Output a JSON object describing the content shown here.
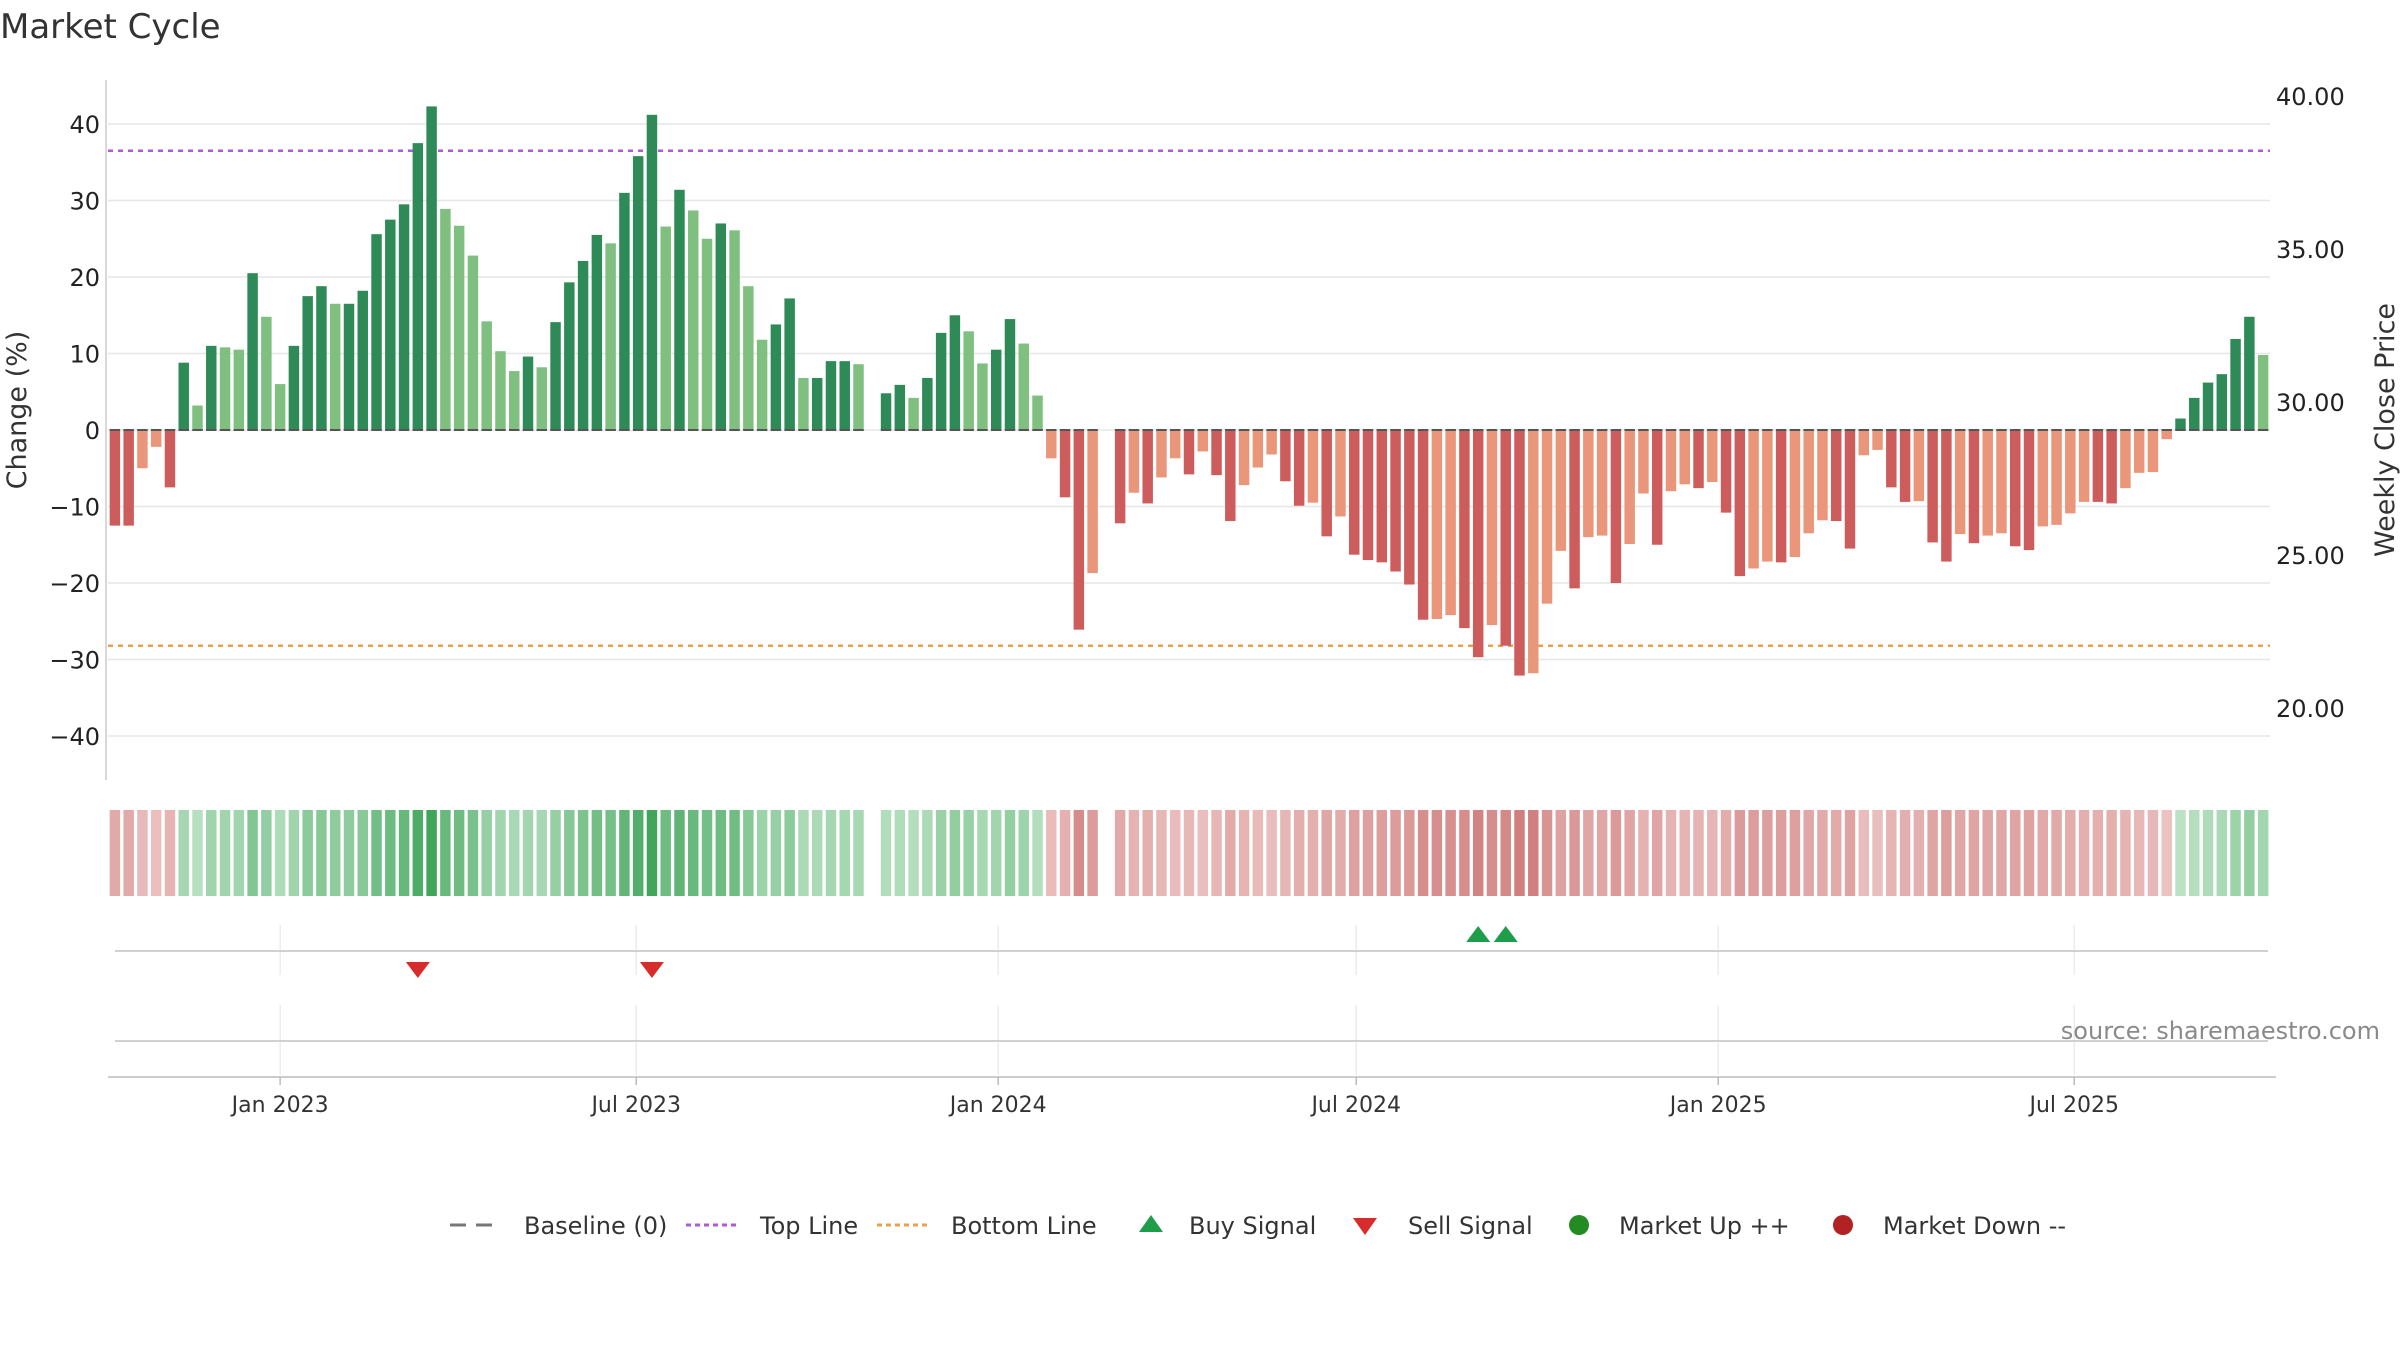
{
  "chart_data": {
    "type": "bar",
    "title": "Market Cycle",
    "ylabel": "Change (%)",
    "y2label": "Weekly Close Price",
    "ylim": [
      -46,
      46
    ],
    "y2lim": [
      17.96,
      41.06
    ],
    "yticks": [
      "40",
      "30",
      "20",
      "10",
      "0",
      "−10",
      "−20",
      "−30",
      "−40"
    ],
    "y2ticks": [
      "40.00",
      "35.00",
      "30.00",
      "25.00",
      "20.00"
    ],
    "top_line": 36.5,
    "bottom_line": -28.2,
    "baseline": 0,
    "start_date": "2022-10-09",
    "x_ticks": [
      {
        "date": "2023-01-01",
        "label": "Jan 2023"
      },
      {
        "date": "2023-07-01",
        "label": "Jul 2023"
      },
      {
        "date": "2024-01-01",
        "label": "Jan 2024"
      },
      {
        "date": "2024-07-01",
        "label": "Jul 2024"
      },
      {
        "date": "2025-01-01",
        "label": "Jan 2025"
      },
      {
        "date": "2025-07-01",
        "label": "Jul 2025"
      }
    ],
    "values": [
      -12.5,
      -12.5,
      -5,
      -2.2,
      -7.5,
      8.8,
      3.2,
      11,
      10.8,
      10.5,
      20.5,
      14.8,
      6,
      11,
      17.5,
      18.8,
      16.5,
      16.5,
      18.2,
      25.6,
      27.5,
      29.5,
      37.5,
      42.3,
      28.9,
      26.7,
      22.8,
      14.2,
      10.3,
      7.7,
      9.6,
      8.2,
      14.1,
      19.3,
      22.1,
      25.5,
      24.4,
      31,
      35.8,
      41.2,
      26.6,
      31.4,
      28.7,
      25,
      27,
      26.1,
      18.8,
      11.8,
      13.8,
      17.2,
      6.8,
      6.8,
      9,
      9,
      8.6,
      null,
      4.8,
      5.9,
      4.2,
      6.8,
      12.7,
      15,
      12.9,
      8.7,
      10.5,
      14.5,
      11.3,
      4.5,
      -3.7,
      -8.8,
      -26.1,
      -18.7,
      null,
      -12.2,
      -8.2,
      -9.6,
      -6.2,
      -3.7,
      -5.8,
      -2.8,
      -5.9,
      -11.9,
      -7.2,
      -4.9,
      -3.2,
      -6.7,
      -9.9,
      -9.5,
      -13.9,
      -11.3,
      -16.3,
      -17,
      -17.3,
      -18.5,
      -20.2,
      -24.8,
      -24.7,
      -24.2,
      -25.9,
      -29.7,
      -25.5,
      -28.2,
      -32.1,
      -31.8,
      -22.7,
      -15.8,
      -20.7,
      -14,
      -13.8,
      -20,
      -14.9,
      -8.3,
      -15,
      -8,
      -7.1,
      -7.6,
      -6.8,
      -10.8,
      -19.1,
      -18.1,
      -17.2,
      -17.3,
      -16.6,
      -13.5,
      -11.8,
      -11.9,
      -15.5,
      -3.3,
      -2.6,
      -7.5,
      -9.4,
      -9.3,
      -14.7,
      -17.2,
      -13.6,
      -14.8,
      -13.8,
      -13.5,
      -15.2,
      -15.7,
      -12.6,
      -12.4,
      -10.9,
      -9.4,
      -9.4,
      -9.6,
      -7.6,
      -5.6,
      -5.5,
      -1.2,
      1.5,
      4.2,
      6.2,
      7.3,
      11.9,
      14.8,
      9.8
    ],
    "buy_signals": [
      99,
      101
    ],
    "sell_signals": [
      22,
      39
    ]
  },
  "legend": [
    {
      "label": "Baseline (0)",
      "icon": "dash-line",
      "color": "#777777"
    },
    {
      "label": "Top Line",
      "icon": "dotted-line",
      "color": "#b15ad6"
    },
    {
      "label": "Bottom Line",
      "icon": "dotted-line",
      "color": "#e8a24c"
    },
    {
      "label": "Buy Signal",
      "icon": "triangle-up",
      "color": "#1e9e4a"
    },
    {
      "label": "Sell Signal",
      "icon": "triangle-down",
      "color": "#d62c2c"
    },
    {
      "label": "Market Up ++",
      "icon": "circle",
      "color": "#228b22"
    },
    {
      "label": "Market Down --",
      "icon": "circle",
      "color": "#b22222"
    }
  ],
  "source": "source: sharemaestro.com",
  "colors": {
    "pos_strong": "#2e8b57",
    "pos_light": "#7fbf7f",
    "neg_strong": "#cd5c5c",
    "neg_light": "#e9967a",
    "grid": "#e6e6e6",
    "top_line": "#b15ad6",
    "bottom_line": "#e8a24c"
  }
}
